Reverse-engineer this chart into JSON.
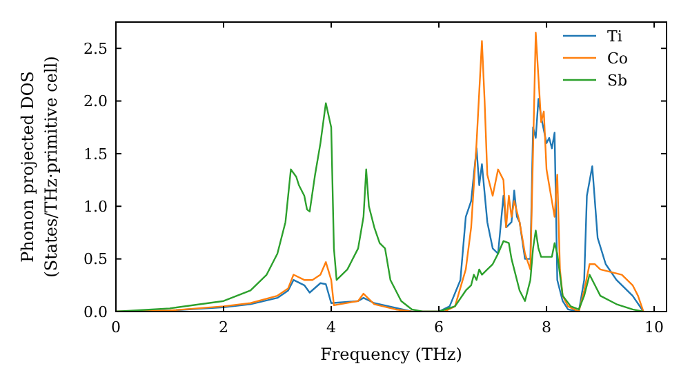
{
  "chart_data": {
    "type": "line",
    "xlabel": "Frequency (THz)",
    "ylabel": "Phonon projected DOS\n(States/THz·primitive cell)",
    "xlim": [
      0,
      10.23
    ],
    "ylim": [
      0,
      2.75
    ],
    "xticks": [
      0,
      2,
      4,
      6,
      8,
      10
    ],
    "yticks": [
      {
        "value": 0,
        "label": "0.0"
      },
      0.5,
      {
        "value": 1,
        "label": "1.0"
      },
      1.5,
      {
        "value": 2,
        "label": "2.0"
      },
      2.5
    ],
    "legend": "top right",
    "grid": false,
    "marker": "none",
    "line_style": "solid",
    "series": [
      {
        "name": "Ti",
        "color": "#1f77b4",
        "x": [
          0,
          1,
          2,
          2.5,
          3,
          3.2,
          3.3,
          3.5,
          3.6,
          3.8,
          3.9,
          4,
          4.5,
          4.6,
          4.8,
          5.5,
          6,
          6.2,
          6.4,
          6.5,
          6.6,
          6.7,
          6.75,
          6.8,
          6.9,
          7,
          7.1,
          7.2,
          7.25,
          7.35,
          7.4,
          7.45,
          7.5,
          7.6,
          7.7,
          7.75,
          7.8,
          7.85,
          7.9,
          8,
          8.05,
          8.1,
          8.15,
          8.2,
          8.3,
          8.4,
          8.6,
          8.7,
          8.75,
          8.85,
          8.95,
          9.1,
          9.3,
          9.6,
          9.8
        ],
        "values": [
          0,
          0.01,
          0.04,
          0.07,
          0.13,
          0.2,
          0.3,
          0.25,
          0.18,
          0.27,
          0.26,
          0.08,
          0.1,
          0.13,
          0.08,
          0,
          0,
          0.05,
          0.3,
          0.9,
          1.05,
          1.55,
          1.2,
          1.4,
          0.85,
          0.6,
          0.55,
          1.1,
          0.8,
          0.85,
          1.15,
          0.9,
          0.85,
          0.5,
          0.5,
          1.75,
          1.65,
          2.02,
          1.85,
          1.6,
          1.65,
          1.55,
          1.7,
          0.3,
          0.1,
          0.02,
          0,
          0.3,
          1.1,
          1.38,
          0.7,
          0.45,
          0.3,
          0.15,
          0
        ]
      },
      {
        "name": "Co",
        "color": "#ff7f0e",
        "x": [
          0,
          1,
          2,
          2.5,
          3,
          3.2,
          3.3,
          3.5,
          3.65,
          3.8,
          3.9,
          4,
          4.05,
          4.5,
          4.6,
          4.8,
          5.2,
          5.5,
          6.1,
          6.3,
          6.5,
          6.6,
          6.7,
          6.8,
          6.85,
          6.9,
          7,
          7.1,
          7.2,
          7.25,
          7.3,
          7.35,
          7.4,
          7.5,
          7.6,
          7.7,
          7.8,
          7.9,
          7.95,
          8,
          8.1,
          8.15,
          8.2,
          8.25,
          8.3,
          8.4,
          8.6,
          8.7,
          8.8,
          8.9,
          9,
          9.4,
          9.6,
          9.7,
          9.8
        ],
        "values": [
          0,
          0.01,
          0.05,
          0.08,
          0.15,
          0.22,
          0.35,
          0.3,
          0.3,
          0.35,
          0.47,
          0.3,
          0.06,
          0.1,
          0.17,
          0.07,
          0.02,
          0,
          0,
          0.05,
          0.4,
          0.8,
          1.6,
          2.57,
          2,
          1.3,
          1.1,
          1.35,
          1.25,
          0.8,
          1.1,
          0.9,
          1.05,
          0.85,
          0.55,
          0.4,
          2.65,
          1.8,
          1.9,
          1.35,
          1.05,
          0.9,
          1.3,
          0.4,
          0.15,
          0.05,
          0,
          0.2,
          0.45,
          0.45,
          0.4,
          0.35,
          0.25,
          0.15,
          0
        ]
      },
      {
        "name": "Sb",
        "color": "#2ca02c",
        "x": [
          0,
          1,
          2,
          2.5,
          2.8,
          3,
          3.15,
          3.25,
          3.35,
          3.4,
          3.5,
          3.55,
          3.6,
          3.7,
          3.8,
          3.9,
          4,
          4.05,
          4.1,
          4.3,
          4.5,
          4.6,
          4.65,
          4.7,
          4.8,
          4.9,
          5,
          5.1,
          5.3,
          5.5,
          5.7,
          6,
          6.3,
          6.5,
          6.6,
          6.65,
          6.7,
          6.75,
          6.8,
          6.9,
          7,
          7.1,
          7.2,
          7.3,
          7.35,
          7.5,
          7.6,
          7.7,
          7.75,
          7.8,
          7.85,
          7.9,
          8.1,
          8.15,
          8.2,
          8.3,
          8.45,
          8.6,
          8.7,
          8.8,
          8.9,
          9,
          9.3,
          9.6,
          9.8
        ],
        "values": [
          0,
          0.03,
          0.1,
          0.2,
          0.35,
          0.55,
          0.85,
          1.35,
          1.28,
          1.2,
          1.1,
          0.97,
          0.95,
          1.3,
          1.6,
          1.98,
          1.75,
          0.6,
          0.3,
          0.4,
          0.6,
          0.9,
          1.35,
          1,
          0.8,
          0.65,
          0.6,
          0.3,
          0.1,
          0.02,
          0,
          0,
          0.05,
          0.2,
          0.25,
          0.35,
          0.3,
          0.4,
          0.35,
          0.4,
          0.45,
          0.55,
          0.67,
          0.65,
          0.5,
          0.2,
          0.1,
          0.3,
          0.6,
          0.77,
          0.6,
          0.52,
          0.52,
          0.65,
          0.55,
          0.15,
          0.05,
          0.02,
          0.15,
          0.35,
          0.25,
          0.15,
          0.07,
          0.02,
          0
        ]
      }
    ]
  }
}
